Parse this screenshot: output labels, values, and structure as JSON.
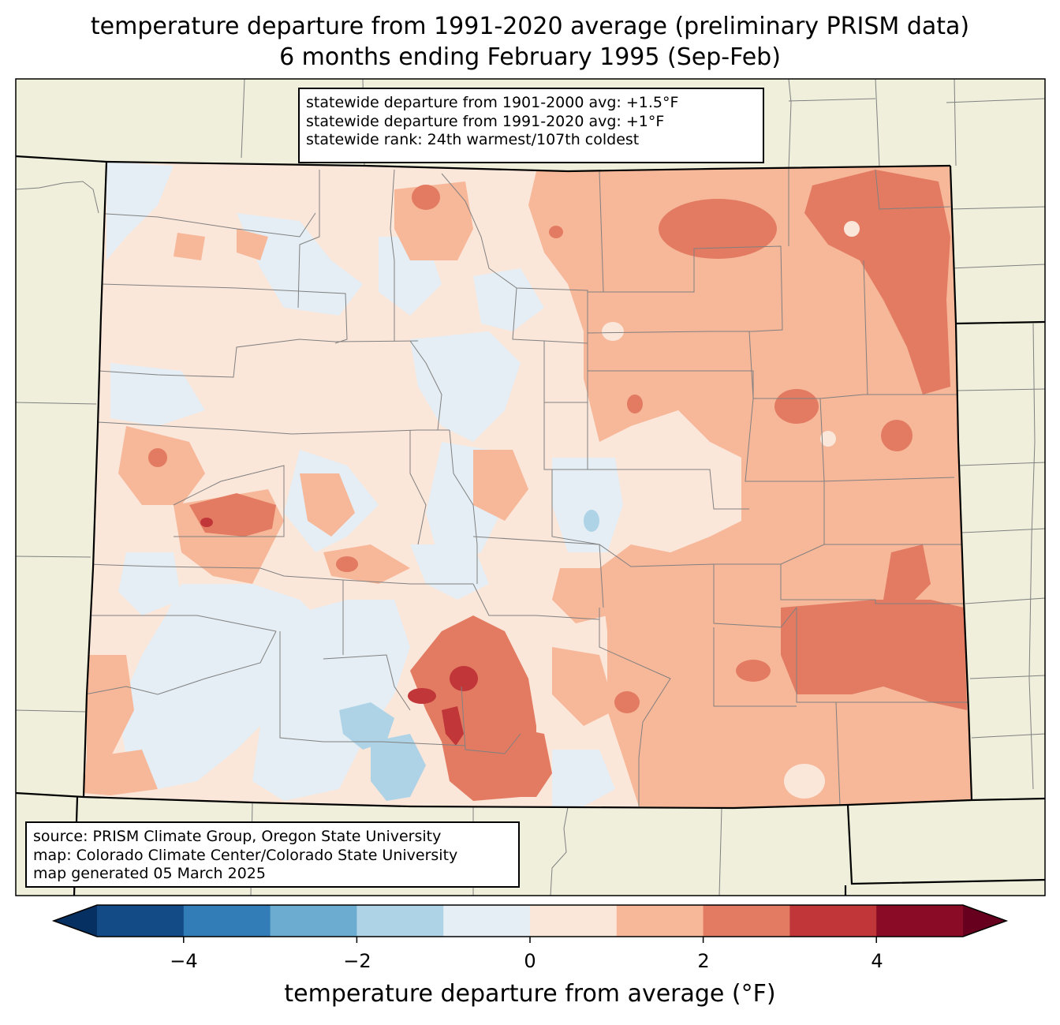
{
  "title_line1": "temperature departure from 1991-2020 average (preliminary PRISM data)",
  "title_line2": "6 months ending February 1995 (Sep-Feb)",
  "stats": {
    "line1": "statewide departure from 1901-2000 avg: +1.5°F",
    "line2": "statewide departure from 1991-2020 avg: +1°F",
    "line3": "statewide rank: 24th warmest/107th coldest"
  },
  "source": {
    "line1": "source: PRISM Climate Group, Oregon State University",
    "line2": "map: Colorado Climate Center/Colorado State University",
    "line3": "map generated 05 March 2025"
  },
  "colorbar": {
    "label": "temperature departure from average (°F)",
    "ticks": [
      "−4",
      "−2",
      "0",
      "2",
      "4"
    ],
    "bins": [
      {
        "min": -5,
        "max": -4,
        "color": "#134b87"
      },
      {
        "min": -4,
        "max": -3,
        "color": "#327cb7"
      },
      {
        "min": -3,
        "max": -2,
        "color": "#6bacd0"
      },
      {
        "min": -2,
        "max": -1,
        "color": "#aed3e6"
      },
      {
        "min": -1,
        "max": 0,
        "color": "#e4eef4"
      },
      {
        "min": 0,
        "max": 1,
        "color": "#fbe6da"
      },
      {
        "min": 1,
        "max": 2,
        "color": "#f7b799"
      },
      {
        "min": 2,
        "max": 3,
        "color": "#e27b62"
      },
      {
        "min": 3,
        "max": 4,
        "color": "#c13639"
      },
      {
        "min": 4,
        "max": 5,
        "color": "#8a0b25"
      }
    ],
    "under_color": "#053061",
    "over_color": "#67001f"
  },
  "colors": {
    "land": "#efefdc",
    "state_fill_base": "#fbe6da",
    "county_line": "#808080",
    "state_line": "#000000"
  }
}
